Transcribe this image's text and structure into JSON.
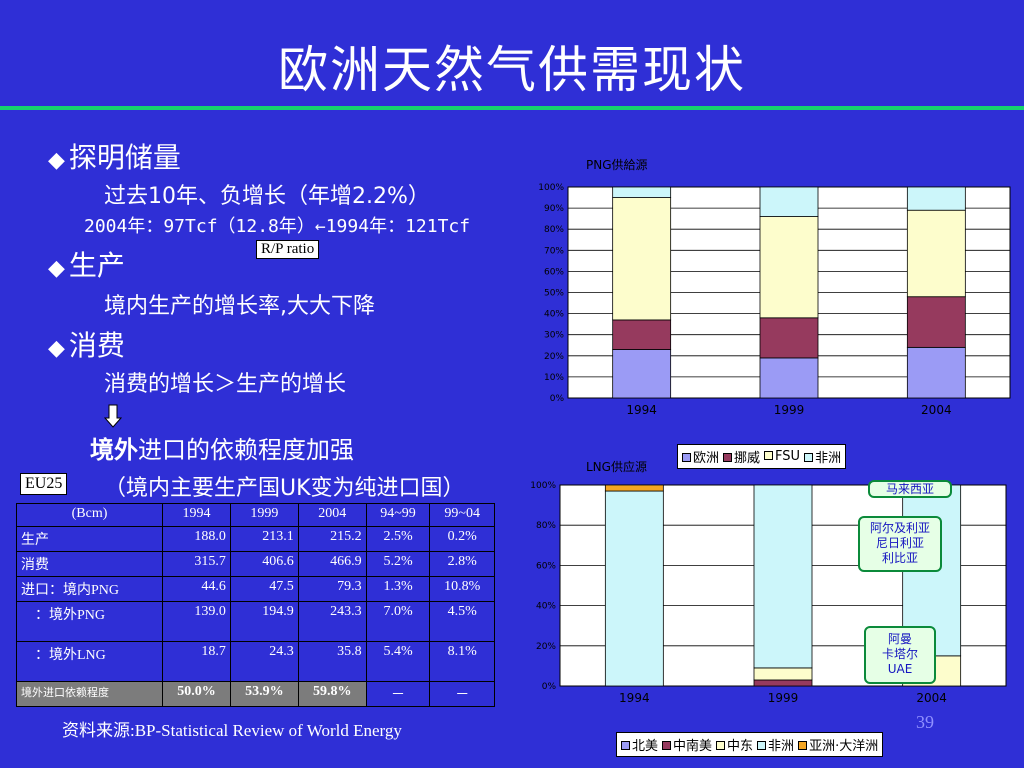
{
  "title": "欧洲天然气供需现状",
  "text": {
    "reserves_heading": "探明储量",
    "reserves_line1": "过去10年、负增长（年增2.2%）",
    "reserves_line2": "2004年：97Tcf（12.8年）←1994年：121Tcf",
    "rp_ratio": "R/P ratio",
    "production_heading": "生产",
    "production_line": "境内生产的增长率,大大下降",
    "consumption_heading": "消费",
    "consumption_line": "消费的增长＞生产的增长",
    "conclusion_emph": "境外",
    "conclusion_rest": "进口的依赖程度加强",
    "conclusion_note": "（境内主要生产国UK变为纯进口国）",
    "eu25": "EU25",
    "bullet_glyph": "◆",
    "source": "资料来源:BP-Statistical Review of World Energy",
    "page_number": "39"
  },
  "table": {
    "header": [
      "(Bcm)",
      "1994",
      "1999",
      "2004",
      "94~99",
      "99~04"
    ],
    "rows": [
      [
        "生产",
        "188.0",
        "213.1",
        "215.2",
        "2.5%",
        "0.2%"
      ],
      [
        "消费",
        "315.7",
        "406.6",
        "466.9",
        "5.2%",
        "2.8%"
      ],
      [
        "进口：境内PNG",
        "44.6",
        "47.5",
        "79.3",
        "1.3%",
        "10.8%"
      ],
      [
        "　：境外PNG",
        "139.0",
        "194.9",
        "243.3",
        "7.0%",
        "4.5%"
      ],
      [
        "　：境外LNG",
        "18.7",
        "24.3",
        "35.8",
        "5.4%",
        "8.1%"
      ],
      [
        "境外进口依赖程度",
        "50.0%",
        "53.9%",
        "59.8%",
        "－",
        "－"
      ]
    ]
  },
  "callouts": {
    "malaysia": "马来西亚",
    "north_africa": [
      "阿尔及利亚",
      "尼日利亚",
      "利比亚"
    ],
    "middle_east": [
      "阿曼",
      "卡塔尔",
      "UAE"
    ]
  },
  "colors": {
    "background": "#2f2fd6",
    "rule": "#16d36e",
    "europe": "#9b9bf5",
    "norway": "#963a5e",
    "fsu": "#fdfdcc",
    "africa": "#ccf6fa",
    "north_america": "#9b9bf5",
    "latin_america": "#963a5e",
    "middle_east": "#fdfdcc",
    "asia_pacific": "#f5a623"
  },
  "chart_data": [
    {
      "type": "bar",
      "stacked": true,
      "title": "PNG供給源",
      "categories": [
        "1994",
        "1999",
        "2004"
      ],
      "yticks": [
        "0%",
        "10%",
        "20%",
        "30%",
        "40%",
        "50%",
        "60%",
        "70%",
        "80%",
        "90%",
        "100%"
      ],
      "ylim": [
        0,
        100
      ],
      "series": [
        {
          "name": "欧洲",
          "color": "#9b9bf5",
          "values": [
            23,
            19,
            24
          ]
        },
        {
          "name": "挪威",
          "color": "#963a5e",
          "values": [
            14,
            19,
            24
          ]
        },
        {
          "name": "FSU",
          "color": "#fdfdcc",
          "values": [
            58,
            48,
            41
          ]
        },
        {
          "name": "非洲",
          "color": "#ccf6fa",
          "values": [
            5,
            14,
            11
          ]
        }
      ],
      "legend_position": "bottom"
    },
    {
      "type": "bar",
      "stacked": true,
      "title": "LNG供应源",
      "categories": [
        "1994",
        "1999",
        "2004"
      ],
      "yticks": [
        "0%",
        "20%",
        "40%",
        "60%",
        "80%",
        "100%"
      ],
      "ylim": [
        0,
        100
      ],
      "series": [
        {
          "name": "北美",
          "color": "#9b9bf5",
          "values": [
            0,
            0,
            0
          ]
        },
        {
          "name": "中南美",
          "color": "#963a5e",
          "values": [
            0,
            3,
            0
          ]
        },
        {
          "name": "中东",
          "color": "#fdfdcc",
          "values": [
            0,
            6,
            15
          ]
        },
        {
          "name": "非洲",
          "color": "#ccf6fa",
          "values": [
            97,
            91,
            85
          ]
        },
        {
          "name": "亚洲·大洋洲",
          "color": "#f5a623",
          "values": [
            3,
            0,
            0
          ]
        }
      ],
      "legend_position": "bottom"
    }
  ]
}
